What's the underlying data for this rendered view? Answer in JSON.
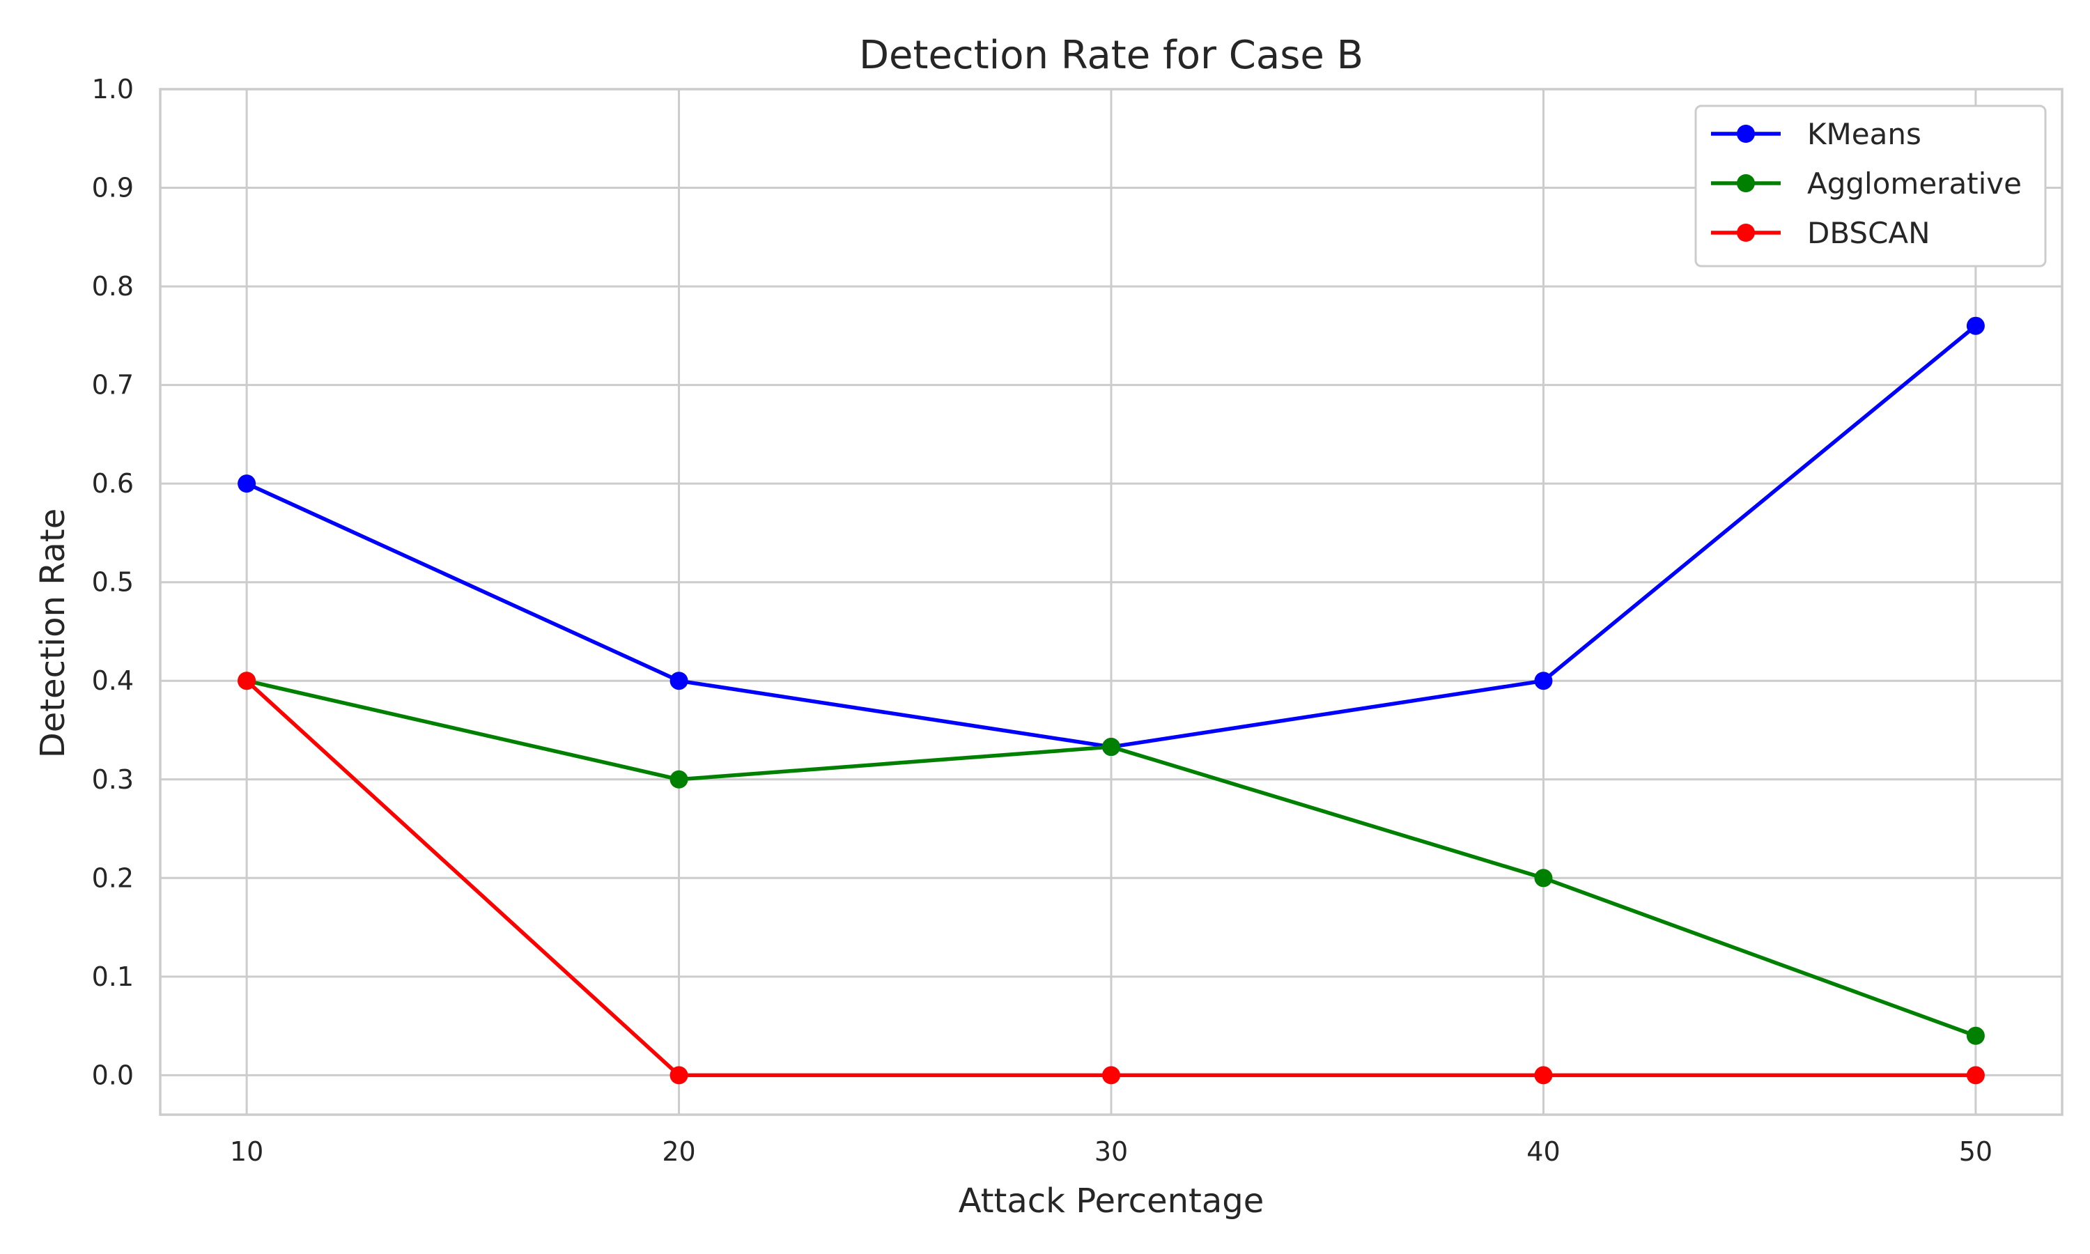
{
  "chart_data": {
    "type": "line",
    "title": "Detection Rate for Case B",
    "xlabel": "Attack Percentage",
    "ylabel": "Detection Rate",
    "x": [
      10,
      20,
      30,
      40,
      50
    ],
    "x_ticks": [
      "10",
      "20",
      "30",
      "40",
      "50"
    ],
    "y_ticks": [
      "0.0",
      "0.1",
      "0.2",
      "0.3",
      "0.4",
      "0.5",
      "0.6",
      "0.7",
      "0.8",
      "0.9",
      "1.0"
    ],
    "xlim": [
      8,
      52
    ],
    "ylim": [
      -0.04,
      1.0
    ],
    "grid": true,
    "legend_position": "top-right",
    "series": [
      {
        "name": "KMeans",
        "color": "#0000ff",
        "values": [
          0.6,
          0.4,
          0.333,
          0.4,
          0.76
        ]
      },
      {
        "name": "Agglomerative",
        "color": "#008000",
        "values": [
          0.4,
          0.3,
          0.333,
          0.2,
          0.04
        ]
      },
      {
        "name": "DBSCAN",
        "color": "#ff0000",
        "values": [
          0.4,
          0.0,
          0.0,
          0.0,
          0.0
        ]
      }
    ]
  }
}
